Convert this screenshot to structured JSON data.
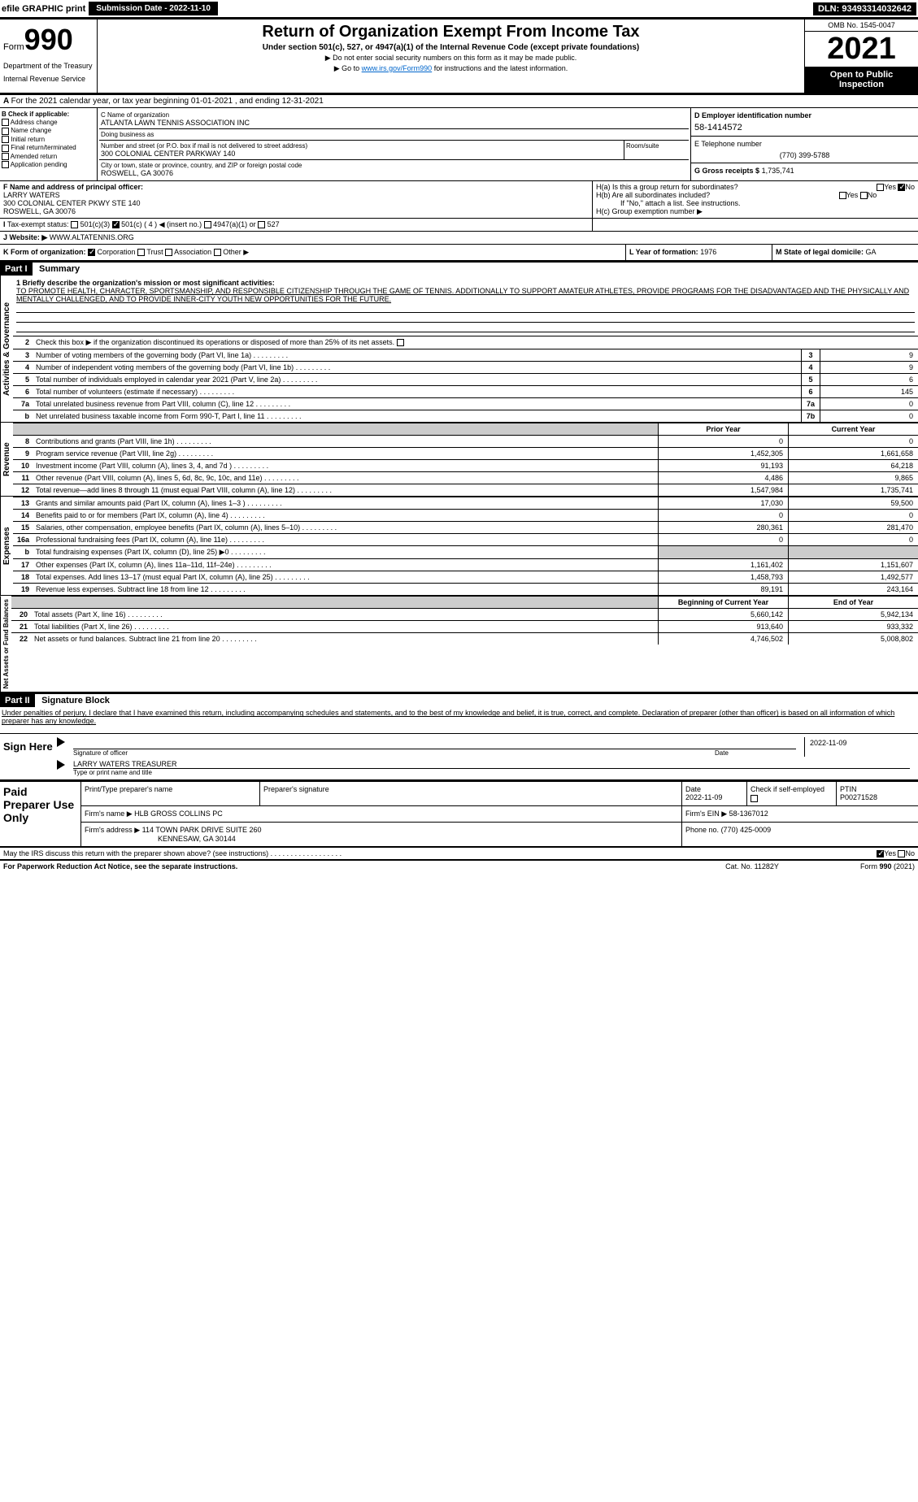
{
  "topbar": {
    "efile": "efile GRAPHIC print",
    "submission_label": "Submission Date - 2022-11-10",
    "dln": "DLN: 93493314032642"
  },
  "header": {
    "form_label": "Form",
    "form_number": "990",
    "dept1": "Department of the Treasury",
    "dept2": "Internal Revenue Service",
    "title": "Return of Organization Exempt From Income Tax",
    "subtitle": "Under section 501(c), 527, or 4947(a)(1) of the Internal Revenue Code (except private foundations)",
    "instr1": "▶ Do not enter social security numbers on this form as it may be made public.",
    "instr2a": "▶ Go to ",
    "instr2_link": "www.irs.gov/Form990",
    "instr2b": " for instructions and the latest information.",
    "omb": "OMB No. 1545-0047",
    "year": "2021",
    "open_public": "Open to Public Inspection"
  },
  "row_a": "For the 2021 calendar year, or tax year beginning 01-01-2021     , and ending 12-31-2021",
  "col_b": {
    "header": "B Check if applicable:",
    "items": [
      "Address change",
      "Name change",
      "Initial return",
      "Final return/terminated",
      "Amended return",
      "Application pending"
    ]
  },
  "col_c": {
    "name_label": "C Name of organization",
    "name": "ATLANTA LAWN TENNIS ASSOCIATION INC",
    "dba_label": "Doing business as",
    "dba": "",
    "street_label": "Number and street (or P.O. box if mail is not delivered to street address)",
    "room_label": "Room/suite",
    "street": "300 COLONIAL CENTER PARKWAY 140",
    "city_label": "City or town, state or province, country, and ZIP or foreign postal code",
    "city": "ROSWELL, GA  30076"
  },
  "col_d": {
    "label": "D Employer identification number",
    "ein": "58-1414572"
  },
  "col_e": {
    "label": "E Telephone number",
    "phone": "(770) 399-5788"
  },
  "col_g": {
    "label": "G Gross receipts $",
    "val": "1,735,741"
  },
  "officer": {
    "label": "F  Name and address of principal officer:",
    "name": "LARRY WATERS",
    "addr1": "300 COLONIAL CENTER PKWY STE 140",
    "addr2": "ROSWELL, GA  30076"
  },
  "h": {
    "a_label": "H(a)  Is this a group return for subordinates?",
    "a_yes": "Yes",
    "a_no": "No",
    "b_label": "H(b)  Are all subordinates included?",
    "b_yes": "Yes",
    "b_no": "No",
    "b_note": "If \"No,\" attach a list. See instructions.",
    "c_label": "H(c)  Group exemption number ▶"
  },
  "status": {
    "label": "Tax-exempt status:",
    "c3": "501(c)(3)",
    "c": "501(c) ( 4 ) ◀ (insert no.)",
    "a1": "4947(a)(1) or",
    "s527": "527"
  },
  "website": {
    "label": "J Website: ▶",
    "val": "WWW.ALTATENNIS.ORG"
  },
  "row_k": {
    "label": "K Form of organization:",
    "opts": [
      "Corporation",
      "Trust",
      "Association",
      "Other ▶"
    ],
    "l_label": "L Year of formation:",
    "l_val": "1976",
    "m_label": "M State of legal domicile:",
    "m_val": "GA"
  },
  "part1": {
    "header": "Part I",
    "title": "Summary",
    "section_labels": {
      "gov": "Activities & Governance",
      "rev": "Revenue",
      "exp": "Expenses",
      "net": "Net Assets or Fund Balances"
    },
    "line1_label": "1 Briefly describe the organization's mission or most significant activities:",
    "mission": "TO PROMOTE HEALTH, CHARACTER, SPORTSMANSHIP, AND RESPONSIBLE CITIZENSHIP THROUGH THE GAME OF TENNIS. ADDITIONALLY TO SUPPORT AMATEUR ATHLETES, PROVIDE PROGRAMS FOR THE DISADVANTAGED AND THE PHYSICALLY AND MENTALLY CHALLENGED, AND TO PROVIDE INNER-CITY YOUTH NEW OPPORTUNITIES FOR THE FUTURE.",
    "line2": "Check this box ▶     if the organization discontinued its operations or disposed of more than 25% of its net assets.",
    "gov_lines": [
      {
        "n": "3",
        "d": "Number of voting members of the governing body (Part VI, line 1a)",
        "box": "3",
        "v": "9"
      },
      {
        "n": "4",
        "d": "Number of independent voting members of the governing body (Part VI, line 1b)",
        "box": "4",
        "v": "9"
      },
      {
        "n": "5",
        "d": "Total number of individuals employed in calendar year 2021 (Part V, line 2a)",
        "box": "5",
        "v": "6"
      },
      {
        "n": "6",
        "d": "Total number of volunteers (estimate if necessary)",
        "box": "6",
        "v": "145"
      },
      {
        "n": "7a",
        "d": "Total unrelated business revenue from Part VIII, column (C), line 12",
        "box": "7a",
        "v": "0"
      },
      {
        "n": "b",
        "d": "Net unrelated business taxable income from Form 990-T, Part I, line 11",
        "box": "7b",
        "v": "0"
      }
    ],
    "col_headers": {
      "prior": "Prior Year",
      "current": "Current Year"
    },
    "rev_lines": [
      {
        "n": "8",
        "d": "Contributions and grants (Part VIII, line 1h)",
        "p": "0",
        "c": "0"
      },
      {
        "n": "9",
        "d": "Program service revenue (Part VIII, line 2g)",
        "p": "1,452,305",
        "c": "1,661,658"
      },
      {
        "n": "10",
        "d": "Investment income (Part VIII, column (A), lines 3, 4, and 7d )",
        "p": "91,193",
        "c": "64,218"
      },
      {
        "n": "11",
        "d": "Other revenue (Part VIII, column (A), lines 5, 6d, 8c, 9c, 10c, and 11e)",
        "p": "4,486",
        "c": "9,865"
      },
      {
        "n": "12",
        "d": "Total revenue—add lines 8 through 11 (must equal Part VIII, column (A), line 12)",
        "p": "1,547,984",
        "c": "1,735,741"
      }
    ],
    "exp_lines": [
      {
        "n": "13",
        "d": "Grants and similar amounts paid (Part IX, column (A), lines 1–3 )",
        "p": "17,030",
        "c": "59,500"
      },
      {
        "n": "14",
        "d": "Benefits paid to or for members (Part IX, column (A), line 4)",
        "p": "0",
        "c": "0"
      },
      {
        "n": "15",
        "d": "Salaries, other compensation, employee benefits (Part IX, column (A), lines 5–10)",
        "p": "280,361",
        "c": "281,470"
      },
      {
        "n": "16a",
        "d": "Professional fundraising fees (Part IX, column (A), line 11e)",
        "p": "0",
        "c": "0"
      },
      {
        "n": "b",
        "d": "Total fundraising expenses (Part IX, column (D), line 25) ▶0",
        "p": "",
        "c": "",
        "gray": true
      },
      {
        "n": "17",
        "d": "Other expenses (Part IX, column (A), lines 11a–11d, 11f–24e)",
        "p": "1,161,402",
        "c": "1,151,607"
      },
      {
        "n": "18",
        "d": "Total expenses. Add lines 13–17 (must equal Part IX, column (A), line 25)",
        "p": "1,458,793",
        "c": "1,492,577"
      },
      {
        "n": "19",
        "d": "Revenue less expenses. Subtract line 18 from line 12",
        "p": "89,191",
        "c": "243,164"
      }
    ],
    "net_headers": {
      "begin": "Beginning of Current Year",
      "end": "End of Year"
    },
    "net_lines": [
      {
        "n": "20",
        "d": "Total assets (Part X, line 16)",
        "p": "5,660,142",
        "c": "5,942,134"
      },
      {
        "n": "21",
        "d": "Total liabilities (Part X, line 26)",
        "p": "913,640",
        "c": "933,332"
      },
      {
        "n": "22",
        "d": "Net assets or fund balances. Subtract line 21 from line 20",
        "p": "4,746,502",
        "c": "5,008,802"
      }
    ]
  },
  "part2": {
    "header": "Part II",
    "title": "Signature Block",
    "decl": "Under penalties of perjury, I declare that I have examined this return, including accompanying schedules and statements, and to the best of my knowledge and belief, it is true, correct, and complete. Declaration of preparer (other than officer) is based on all information of which preparer has any knowledge."
  },
  "sign": {
    "here": "Sign Here",
    "sig_label": "Signature of officer",
    "date": "2022-11-09",
    "date_label": "Date",
    "name": "LARRY WATERS  TREASURER",
    "name_label": "Type or print name and title"
  },
  "paid": {
    "label": "Paid Preparer Use Only",
    "h1": "Print/Type preparer's name",
    "h2": "Preparer's signature",
    "h3": "Date",
    "h3v": "2022-11-09",
    "h4": "Check       if self-employed",
    "h5": "PTIN",
    "h5v": "P00271528",
    "firm_label": "Firm's name     ▶",
    "firm": "HLB GROSS COLLINS PC",
    "ein_label": "Firm's EIN ▶",
    "ein": "58-1367012",
    "addr_label": "Firm's address ▶",
    "addr1": "114 TOWN PARK DRIVE SUITE 260",
    "addr2": "KENNESAW, GA  30144",
    "phone_label": "Phone no.",
    "phone": "(770) 425-0009"
  },
  "discuss": {
    "q": "May the IRS discuss this return with the preparer shown above? (see instructions)",
    "yes": "Yes",
    "no": "No"
  },
  "footer": {
    "left": "For Paperwork Reduction Act Notice, see the separate instructions.",
    "mid": "Cat. No. 11282Y",
    "right": "Form 990 (2021)"
  }
}
